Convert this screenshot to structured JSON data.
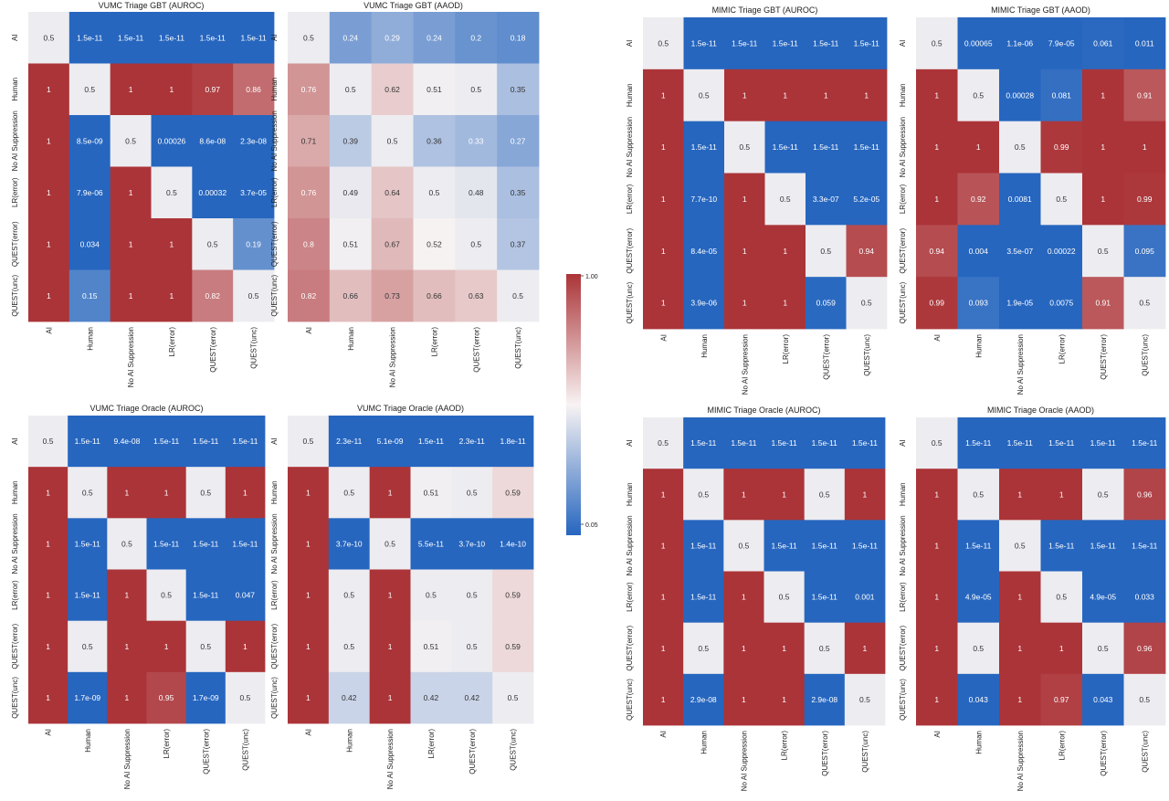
{
  "chart_data": [
    {
      "type": "heatmap",
      "title": "VUMC Triage GBT (AUROC)",
      "labels": [
        "AI",
        "Human",
        "No AI Suppression",
        "LR(error)",
        "QUEST(error)",
        "QUEST(unc)"
      ],
      "cells": [
        [
          "0.5",
          "1.5e-11",
          "1.5e-11",
          "1.5e-11",
          "1.5e-11",
          "1.5e-11"
        ],
        [
          "1",
          "0.5",
          "1",
          "1",
          "0.97",
          "0.86"
        ],
        [
          "1",
          "8.5e-09",
          "0.5",
          "0.00026",
          "8.6e-08",
          "2.3e-08"
        ],
        [
          "1",
          "7.9e-06",
          "1",
          "0.5",
          "0.00032",
          "3.7e-05"
        ],
        [
          "1",
          "0.034",
          "1",
          "1",
          "0.5",
          "0.19"
        ],
        [
          "1",
          "0.15",
          "1",
          "1",
          "0.82",
          "0.5"
        ]
      ]
    },
    {
      "type": "heatmap",
      "title": "VUMC Triage GBT (AAOD)",
      "labels": [
        "AI",
        "Human",
        "No AI Suppression",
        "LR(error)",
        "QUEST(error)",
        "QUEST(unc)"
      ],
      "cells": [
        [
          "0.5",
          "0.24",
          "0.29",
          "0.24",
          "0.2",
          "0.18"
        ],
        [
          "0.76",
          "0.5",
          "0.62",
          "0.51",
          "0.5",
          "0.35"
        ],
        [
          "0.71",
          "0.39",
          "0.5",
          "0.36",
          "0.33",
          "0.27"
        ],
        [
          "0.76",
          "0.49",
          "0.64",
          "0.5",
          "0.48",
          "0.35"
        ],
        [
          "0.8",
          "0.51",
          "0.67",
          "0.52",
          "0.5",
          "0.37"
        ],
        [
          "0.82",
          "0.66",
          "0.73",
          "0.66",
          "0.63",
          "0.5"
        ]
      ]
    },
    {
      "type": "heatmap",
      "title": "MIMIC Triage GBT (AUROC)",
      "labels": [
        "AI",
        "Human",
        "No AI Suppression",
        "LR(error)",
        "QUEST(error)",
        "QUEST(unc)"
      ],
      "cells": [
        [
          "0.5",
          "1.5e-11",
          "1.5e-11",
          "1.5e-11",
          "1.5e-11",
          "1.5e-11"
        ],
        [
          "1",
          "0.5",
          "1",
          "1",
          "1",
          "1"
        ],
        [
          "1",
          "1.5e-11",
          "0.5",
          "1.5e-11",
          "1.5e-11",
          "1.5e-11"
        ],
        [
          "1",
          "7.7e-10",
          "1",
          "0.5",
          "3.3e-07",
          "5.2e-05"
        ],
        [
          "1",
          "8.4e-05",
          "1",
          "1",
          "0.5",
          "0.94"
        ],
        [
          "1",
          "3.9e-06",
          "1",
          "1",
          "0.059",
          "0.5"
        ]
      ]
    },
    {
      "type": "heatmap",
      "title": "MIMIC Triage GBT (AAOD)",
      "labels": [
        "AI",
        "Human",
        "No AI Suppression",
        "LR(error)",
        "QUEST(error)",
        "QUEST(unc)"
      ],
      "cells": [
        [
          "0.5",
          "0.00065",
          "1.1e-06",
          "7.9e-05",
          "0.061",
          "0.011"
        ],
        [
          "1",
          "0.5",
          "0.00028",
          "0.081",
          "1",
          "0.91"
        ],
        [
          "1",
          "1",
          "0.5",
          "0.99",
          "1",
          "1"
        ],
        [
          "1",
          "0.92",
          "0.0081",
          "0.5",
          "1",
          "0.99"
        ],
        [
          "0.94",
          "0.004",
          "3.5e-07",
          "0.00022",
          "0.5",
          "0.095"
        ],
        [
          "0.99",
          "0.093",
          "1.9e-05",
          "0.0075",
          "0.91",
          "0.5"
        ]
      ]
    },
    {
      "type": "heatmap",
      "title": "VUMC Triage Oracle (AUROC)",
      "labels": [
        "AI",
        "Human",
        "No AI Suppression",
        "LR(error)",
        "QUEST(error)",
        "QUEST(unc)"
      ],
      "cells": [
        [
          "0.5",
          "1.5e-11",
          "9.4e-08",
          "1.5e-11",
          "1.5e-11",
          "1.5e-11"
        ],
        [
          "1",
          "0.5",
          "1",
          "1",
          "0.5",
          "1"
        ],
        [
          "1",
          "1.5e-11",
          "0.5",
          "1.5e-11",
          "1.5e-11",
          "1.5e-11"
        ],
        [
          "1",
          "1.5e-11",
          "1",
          "0.5",
          "1.5e-11",
          "0.047"
        ],
        [
          "1",
          "0.5",
          "1",
          "1",
          "0.5",
          "1"
        ],
        [
          "1",
          "1.7e-09",
          "1",
          "0.95",
          "1.7e-09",
          "0.5"
        ]
      ]
    },
    {
      "type": "heatmap",
      "title": "VUMC Triage Oracle (AAOD)",
      "labels": [
        "AI",
        "Human",
        "No AI Suppression",
        "LR(error)",
        "QUEST(error)",
        "QUEST(unc)"
      ],
      "cells": [
        [
          "0.5",
          "2.3e-11",
          "5.1e-09",
          "1.5e-11",
          "2.3e-11",
          "1.8e-11"
        ],
        [
          "1",
          "0.5",
          "1",
          "0.51",
          "0.5",
          "0.59"
        ],
        [
          "1",
          "3.7e-10",
          "0.5",
          "5.5e-11",
          "3.7e-10",
          "1.4e-10"
        ],
        [
          "1",
          "0.5",
          "1",
          "0.5",
          "0.5",
          "0.59"
        ],
        [
          "1",
          "0.5",
          "1",
          "0.51",
          "0.5",
          "0.59"
        ],
        [
          "1",
          "0.42",
          "1",
          "0.42",
          "0.42",
          "0.5"
        ]
      ]
    },
    {
      "type": "heatmap",
      "title": "MIMIC Triage Oracle (AUROC)",
      "labels": [
        "AI",
        "Human",
        "No AI Suppression",
        "LR(error)",
        "QUEST(error)",
        "QUEST(unc)"
      ],
      "cells": [
        [
          "0.5",
          "1.5e-11",
          "1.5e-11",
          "1.5e-11",
          "1.5e-11",
          "1.5e-11"
        ],
        [
          "1",
          "0.5",
          "1",
          "1",
          "0.5",
          "1"
        ],
        [
          "1",
          "1.5e-11",
          "0.5",
          "1.5e-11",
          "1.5e-11",
          "1.5e-11"
        ],
        [
          "1",
          "1.5e-11",
          "1",
          "0.5",
          "1.5e-11",
          "0.001"
        ],
        [
          "1",
          "0.5",
          "1",
          "1",
          "0.5",
          "1"
        ],
        [
          "1",
          "2.9e-08",
          "1",
          "1",
          "2.9e-08",
          "0.5"
        ]
      ]
    },
    {
      "type": "heatmap",
      "title": "MIMIC Triage Oracle (AAOD)",
      "labels": [
        "AI",
        "Human",
        "No AI Suppression",
        "LR(error)",
        "QUEST(error)",
        "QUEST(unc)"
      ],
      "cells": [
        [
          "0.5",
          "1.5e-11",
          "1.5e-11",
          "1.5e-11",
          "1.5e-11",
          "1.5e-11"
        ],
        [
          "1",
          "0.5",
          "1",
          "1",
          "0.5",
          "0.96"
        ],
        [
          "1",
          "1.5e-11",
          "0.5",
          "1.5e-11",
          "1.5e-11",
          "1.5e-11"
        ],
        [
          "1",
          "4.9e-05",
          "1",
          "0.5",
          "4.9e-05",
          "0.033"
        ],
        [
          "1",
          "0.5",
          "1",
          "1",
          "0.5",
          "0.96"
        ],
        [
          "1",
          "0.043",
          "1",
          "0.97",
          "0.043",
          "0.5"
        ]
      ]
    }
  ],
  "colorbar": {
    "tick_labels": [
      "1.00",
      "0.05"
    ],
    "range": [
      0.05,
      1.0
    ],
    "colors": {
      "low": "#2666bf",
      "mid": "#f8f3f3",
      "high": "#ab3438"
    }
  }
}
